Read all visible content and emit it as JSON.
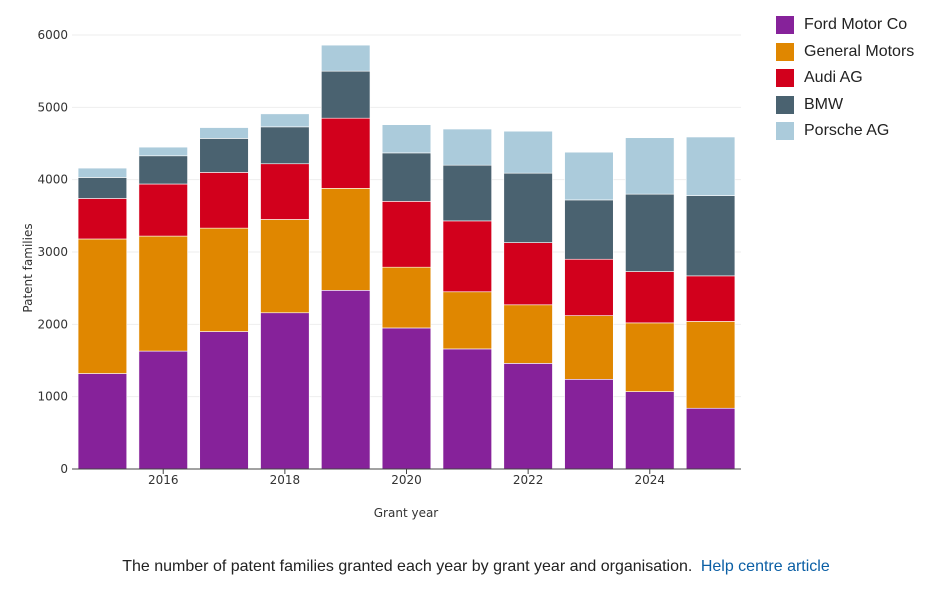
{
  "chart_data": {
    "type": "bar",
    "stacked": true,
    "x": [
      2015,
      2016,
      2017,
      2018,
      2019,
      2020,
      2021,
      2022,
      2023,
      2024,
      2025
    ],
    "xticks": [
      "2016",
      "2018",
      "2020",
      "2022",
      "2024"
    ],
    "xlabel": "Grant year",
    "ylabel": "Patent families",
    "ylim": [
      0,
      6000
    ],
    "yticks": [
      "0",
      "1000",
      "2000",
      "3000",
      "4000",
      "5000",
      "6000"
    ],
    "grid": true,
    "legend_position": "top-right",
    "series": [
      {
        "name": "Ford Motor Co",
        "color": "#86229a",
        "values": [
          1320,
          1630,
          1900,
          2160,
          2470,
          1950,
          1660,
          1460,
          1240,
          1070,
          840
        ]
      },
      {
        "name": "General Motors",
        "color": "#e08700",
        "values": [
          1860,
          1590,
          1430,
          1290,
          1410,
          840,
          790,
          810,
          880,
          950,
          1200
        ]
      },
      {
        "name": "Audi AG",
        "color": "#d2001c",
        "values": [
          560,
          720,
          770,
          770,
          970,
          910,
          980,
          860,
          780,
          710,
          630
        ]
      },
      {
        "name": "BMW",
        "color": "#4a6270",
        "values": [
          290,
          390,
          470,
          510,
          650,
          670,
          770,
          960,
          820,
          1070,
          1110
        ]
      },
      {
        "name": "Porsche AG",
        "color": "#abcbdb",
        "values": [
          130,
          120,
          150,
          180,
          360,
          390,
          500,
          580,
          660,
          780,
          810
        ]
      }
    ]
  },
  "caption": {
    "text": "The number of patent families granted each year by grant year and organisation.",
    "link": "Help centre article"
  }
}
